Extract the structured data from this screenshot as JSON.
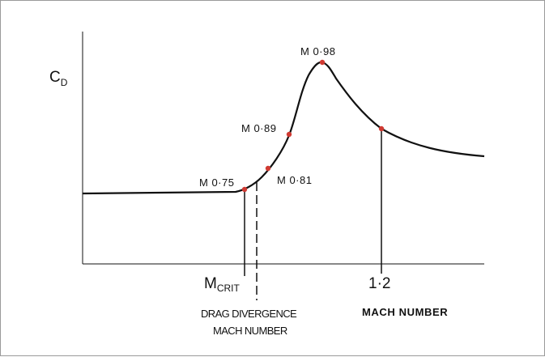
{
  "chart_data": {
    "type": "line",
    "ylabel": {
      "main": "C",
      "sub": "D"
    },
    "xlabel": "MACH NUMBER",
    "x_tick_label": "1·2",
    "mcrit_label": {
      "main": "M",
      "sub": "CRIT"
    },
    "drag_divergence_label": [
      "DRAG DIVERGENCE",
      "MACH NUMBER"
    ],
    "points": [
      {
        "label": "M 0·75",
        "mach": 0.75
      },
      {
        "label": "M 0·81",
        "mach": 0.81
      },
      {
        "label": "M 0·89",
        "mach": 0.89
      },
      {
        "label": "M 0·98",
        "mach": 0.98
      },
      {
        "label": "",
        "mach": 1.2
      }
    ],
    "colors": {
      "curve": "#111111",
      "point": "#d03a32",
      "axis": "#111111",
      "border": "#9a9a9a"
    }
  }
}
